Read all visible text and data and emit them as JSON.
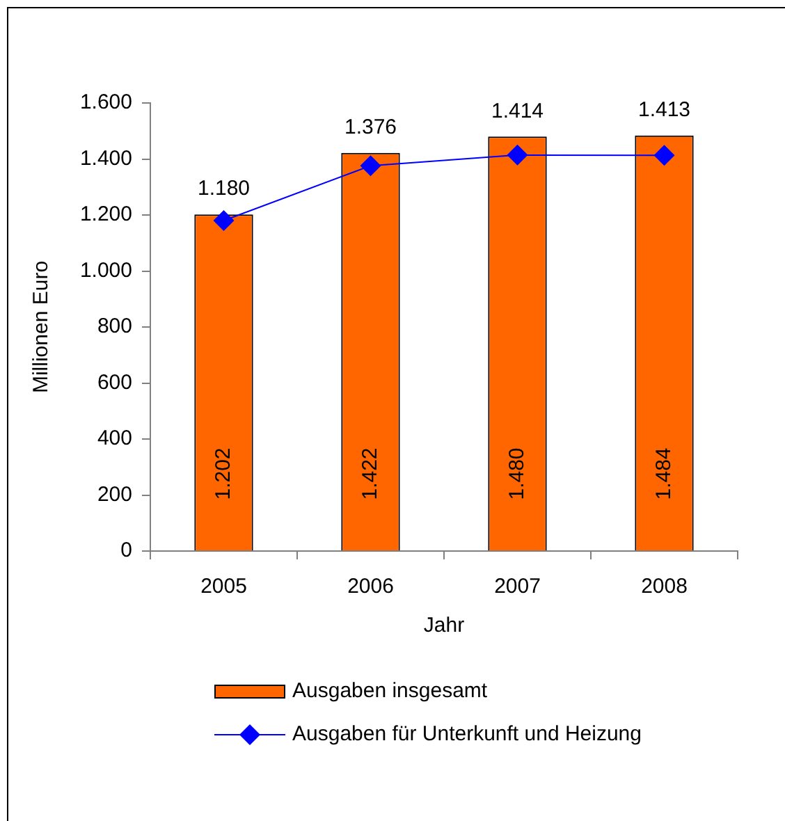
{
  "chart_data": {
    "type": "bar",
    "xlabel": "Jahr",
    "ylabel": "Millionen Euro",
    "categories": [
      "2005",
      "2006",
      "2007",
      "2008"
    ],
    "series": [
      {
        "name": "Ausgaben insgesamt",
        "color": "#ff6600",
        "values": [
          1202,
          1422,
          1480,
          1484
        ],
        "value_labels": [
          "1.202",
          "1.422",
          "1.480",
          "1.484"
        ]
      },
      {
        "name": "Ausgaben für Unterkunft und Heizung",
        "type": "line",
        "color": "#0000ff",
        "values": [
          1180,
          1376,
          1414,
          1413
        ],
        "value_labels": [
          "1.180",
          "1.376",
          "1.414",
          "1.413"
        ]
      }
    ],
    "ylim": [
      0,
      1600
    ],
    "yticks": [
      0,
      200,
      400,
      600,
      800,
      {
        "value": 1000,
        "label": "1.000"
      },
      {
        "value": 1200,
        "label": "1.200"
      },
      {
        "value": 1400,
        "label": "1.400"
      },
      {
        "value": 1600,
        "label": "1.600"
      }
    ],
    "marker": "diamond",
    "legend": "bottom",
    "grid": false
  }
}
